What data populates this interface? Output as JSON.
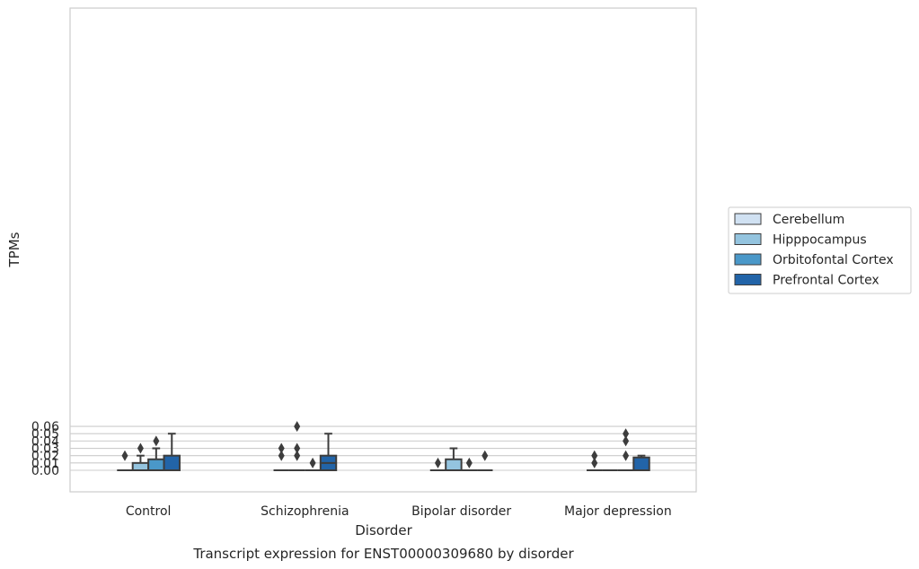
{
  "chart_data": {
    "type": "box",
    "title": "Transcript expression for ENST00000309680 by disorder",
    "xlabel": "Disorder",
    "ylabel": "TPMs",
    "categories": [
      "Control",
      "Schizophrenia",
      "Bipolar disorder",
      "Major depression"
    ],
    "ylim": [
      -0.003,
      0.063
    ],
    "yticks": [
      "0.00",
      "0.01",
      "0.02",
      "0.03",
      "0.04",
      "0.05",
      "0.06"
    ],
    "ytick_values": [
      0.0,
      0.01,
      0.02,
      0.03,
      0.04,
      0.05,
      0.06
    ],
    "grid": "horizontal",
    "legend_position": "right",
    "series": [
      {
        "name": "Cerebellum",
        "color": "#d0e1f2",
        "boxes": [
          {
            "q1": 0,
            "median": 0,
            "q3": 0,
            "whislo": 0,
            "whishi": 0,
            "fliers": [
              0.02
            ]
          },
          {
            "q1": 0,
            "median": 0,
            "q3": 0,
            "whislo": 0,
            "whishi": 0,
            "fliers": [
              0.02,
              0.03
            ]
          },
          {
            "q1": 0,
            "median": 0,
            "q3": 0,
            "whislo": 0,
            "whishi": 0,
            "fliers": [
              0.01
            ]
          },
          {
            "q1": 0,
            "median": 0,
            "q3": 0,
            "whislo": 0,
            "whishi": 0,
            "fliers": [
              0.01,
              0.02
            ]
          }
        ]
      },
      {
        "name": "Hipppocampus",
        "color": "#94c4df",
        "boxes": [
          {
            "q1": 0,
            "median": 0,
            "q3": 0.01,
            "whislo": 0,
            "whishi": 0.02,
            "fliers": [
              0.03
            ]
          },
          {
            "q1": 0,
            "median": 0,
            "q3": 0,
            "whislo": 0,
            "whishi": 0,
            "fliers": [
              0.02,
              0.03,
              0.06
            ]
          },
          {
            "q1": 0,
            "median": 0,
            "q3": 0.015,
            "whislo": 0,
            "whishi": 0.03,
            "fliers": []
          },
          {
            "q1": 0,
            "median": 0,
            "q3": 0,
            "whislo": 0,
            "whishi": 0,
            "fliers": []
          }
        ]
      },
      {
        "name": "Orbitofontal Cortex",
        "color": "#4a98c9",
        "boxes": [
          {
            "q1": 0,
            "median": 0,
            "q3": 0.015,
            "whislo": 0,
            "whishi": 0.03,
            "fliers": [
              0.04
            ]
          },
          {
            "q1": 0,
            "median": 0,
            "q3": 0,
            "whislo": 0,
            "whishi": 0,
            "fliers": [
              0.01
            ]
          },
          {
            "q1": 0,
            "median": 0,
            "q3": 0,
            "whislo": 0,
            "whishi": 0,
            "fliers": [
              0.01
            ]
          },
          {
            "q1": 0,
            "median": 0,
            "q3": 0,
            "whislo": 0,
            "whishi": 0,
            "fliers": [
              0.02,
              0.04,
              0.05
            ]
          }
        ]
      },
      {
        "name": "Prefrontal Cortex",
        "color": "#2264a8",
        "boxes": [
          {
            "q1": 0,
            "median": 0,
            "q3": 0.02,
            "whislo": 0,
            "whishi": 0.05,
            "fliers": []
          },
          {
            "q1": 0,
            "median": 0.01,
            "q3": 0.02,
            "whislo": 0,
            "whishi": 0.05,
            "fliers": []
          },
          {
            "q1": 0,
            "median": 0,
            "q3": 0,
            "whislo": 0,
            "whishi": 0,
            "fliers": [
              0.02
            ]
          },
          {
            "q1": 0,
            "median": 0,
            "q3": 0.0175,
            "whislo": 0,
            "whishi": 0.02,
            "fliers": []
          }
        ]
      }
    ]
  }
}
